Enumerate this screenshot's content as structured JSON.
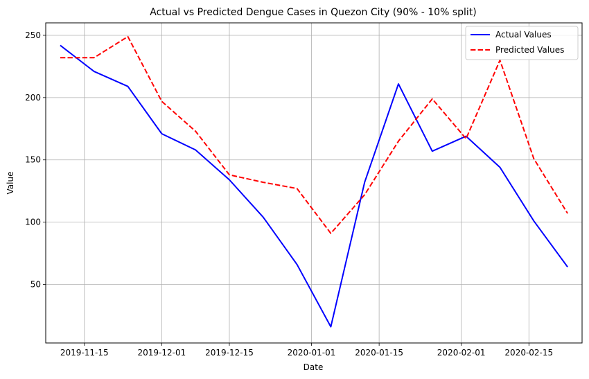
{
  "chart_data": {
    "type": "line",
    "title": "Actual vs Predicted Dengue Cases in Quezon City (90% - 10% split)",
    "xlabel": "Date",
    "ylabel": "Value",
    "x": [
      "2019-11-10",
      "2019-11-17",
      "2019-11-24",
      "2019-12-01",
      "2019-12-08",
      "2019-12-15",
      "2019-12-22",
      "2019-12-29",
      "2020-01-05",
      "2020-01-12",
      "2020-01-19",
      "2020-01-26",
      "2020-02-02",
      "2020-02-09",
      "2020-02-16",
      "2020-02-23"
    ],
    "xlim": [
      "2019-11-07",
      "2020-02-26"
    ],
    "ylim": [
      3,
      260
    ],
    "x_ticks": [
      "2019-11-15",
      "2019-12-01",
      "2019-12-15",
      "2020-01-01",
      "2020-01-15",
      "2020-02-01",
      "2020-02-15"
    ],
    "y_ticks": [
      50,
      100,
      150,
      200,
      250
    ],
    "grid": true,
    "legend_position": "top-right",
    "series": [
      {
        "name": "Actual Values",
        "color": "#0000ff",
        "style": "solid",
        "values": [
          242,
          221,
          209,
          171,
          158,
          134,
          104,
          66,
          16,
          132,
          211,
          157,
          169,
          144,
          101,
          64
        ]
      },
      {
        "name": "Predicted Values",
        "color": "#ff0000",
        "style": "dashed",
        "values": [
          232,
          232,
          249,
          197,
          173,
          138,
          132,
          127,
          91,
          122,
          165,
          199,
          167,
          230,
          151,
          107
        ]
      }
    ]
  }
}
